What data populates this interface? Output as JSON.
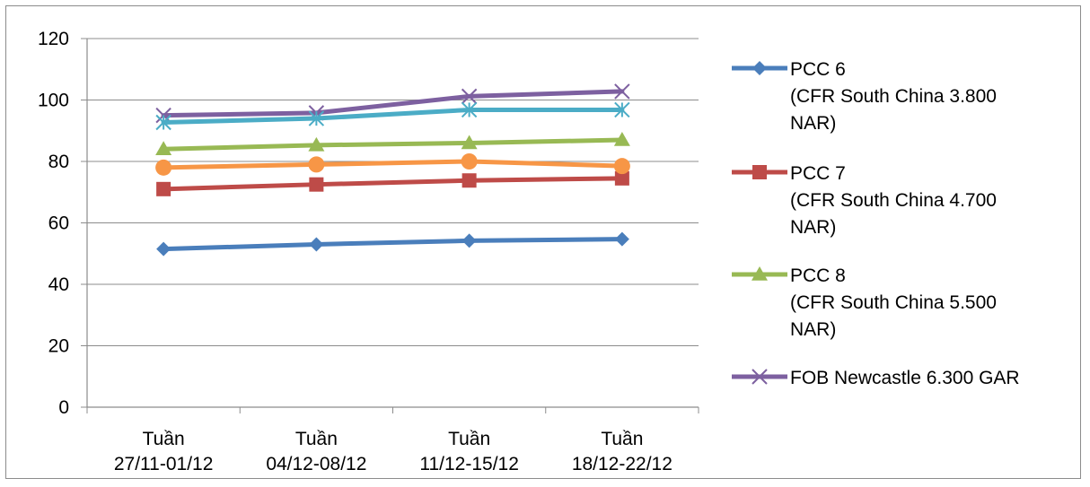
{
  "chart_data": {
    "type": "line",
    "title": "",
    "xlabel": "",
    "ylabel": "",
    "ylim": [
      0,
      120
    ],
    "yticks": [
      0,
      20,
      40,
      60,
      80,
      100,
      120
    ],
    "grid": "horizontal",
    "legend_position": "right",
    "categories": [
      [
        "Tuần",
        "27/11-01/12"
      ],
      [
        "Tuần",
        "04/12-08/12"
      ],
      [
        "Tuần",
        "11/12-15/12"
      ],
      [
        "Tuần",
        "18/12-22/12"
      ]
    ],
    "series": [
      {
        "name": "PCC 6 (CFR South China 3.800 NAR)",
        "legend_lines": [
          "PCC 6",
          "(CFR South China 3.800",
          "NAR)"
        ],
        "color": "#4a7ebb",
        "marker": "diamond",
        "values": [
          51.5,
          53,
          54.2,
          54.7
        ]
      },
      {
        "name": "PCC 7 (CFR South China 4.700 NAR)",
        "legend_lines": [
          "PCC 7",
          "(CFR South China 4.700",
          "NAR)"
        ],
        "color": "#be4b48",
        "marker": "square",
        "values": [
          71,
          72.5,
          73.8,
          74.5
        ]
      },
      {
        "name": "PCC 8 (CFR South China 5.500 NAR)",
        "legend_lines": [
          "PCC 8",
          "(CFR South China 5.500",
          "NAR)"
        ],
        "color": "#98b954",
        "marker": "triangle",
        "values": [
          84,
          85.3,
          86,
          87
        ]
      },
      {
        "name": "FOB Newcastle 6.300 GAR",
        "legend_lines": [
          "FOB Newcastle 6.300 GAR"
        ],
        "color": "#7d60a0",
        "marker": "x",
        "values": [
          95,
          95.8,
          101.2,
          102.8
        ]
      },
      {
        "name": "",
        "legend_lines": [],
        "color": "#4bacc6",
        "marker": "star",
        "values": [
          92.7,
          94,
          96.8,
          96.8
        ]
      },
      {
        "name": "",
        "legend_lines": [],
        "color": "#f79646",
        "marker": "circle",
        "values": [
          78,
          79,
          80,
          78.5
        ]
      }
    ]
  }
}
